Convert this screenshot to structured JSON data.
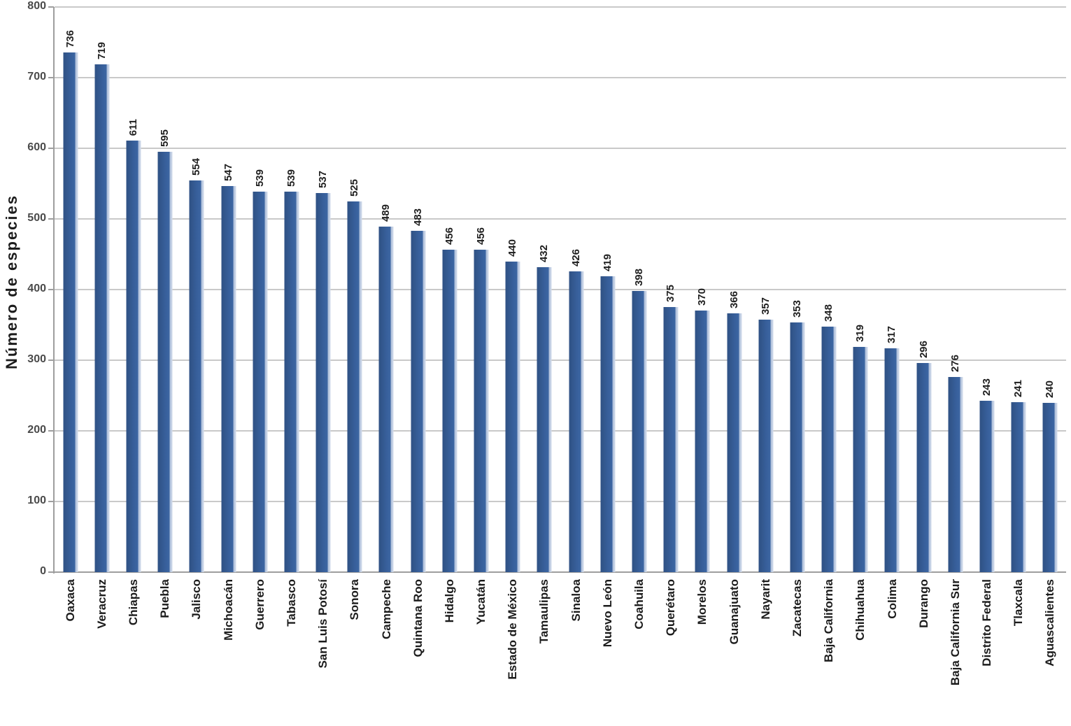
{
  "chart_data": {
    "type": "bar",
    "title": "",
    "xlabel": "",
    "ylabel": "Número de especies",
    "ylim": [
      0,
      800
    ],
    "yticks": [
      0,
      100,
      200,
      300,
      400,
      500,
      600,
      700,
      800
    ],
    "grid": true,
    "legend_position": "none",
    "bar_color": "#38609c",
    "bar_highlight_color": "#d5deec",
    "gridline_color": "#c9c9c9",
    "axis_color": "#9e9e9e",
    "categories": [
      "Oaxaca",
      "Veracruz",
      "Chiapas",
      "Puebla",
      "Jalisco",
      "Michoacán",
      "Guerrero",
      "Tabasco",
      "San Luis Potosí",
      "Sonora",
      "Campeche",
      "Quintana Roo",
      "Hidalgo",
      "Yucatán",
      "Estado de México",
      "Tamaulipas",
      "Sinaloa",
      "Nuevo León",
      "Coahuila",
      "Querétaro",
      "Morelos",
      "Guanajuato",
      "Nayarit",
      "Zacatecas",
      "Baja California",
      "Chihuahua",
      "Colima",
      "Durango",
      "Baja California Sur",
      "Distrito Federal",
      "Tlaxcala",
      "Aguascalientes"
    ],
    "values": [
      736,
      719,
      611,
      595,
      554,
      547,
      539,
      539,
      537,
      525,
      489,
      483,
      456,
      456,
      440,
      432,
      426,
      419,
      398,
      375,
      370,
      366,
      357,
      353,
      348,
      319,
      317,
      296,
      276,
      243,
      241,
      240
    ]
  }
}
